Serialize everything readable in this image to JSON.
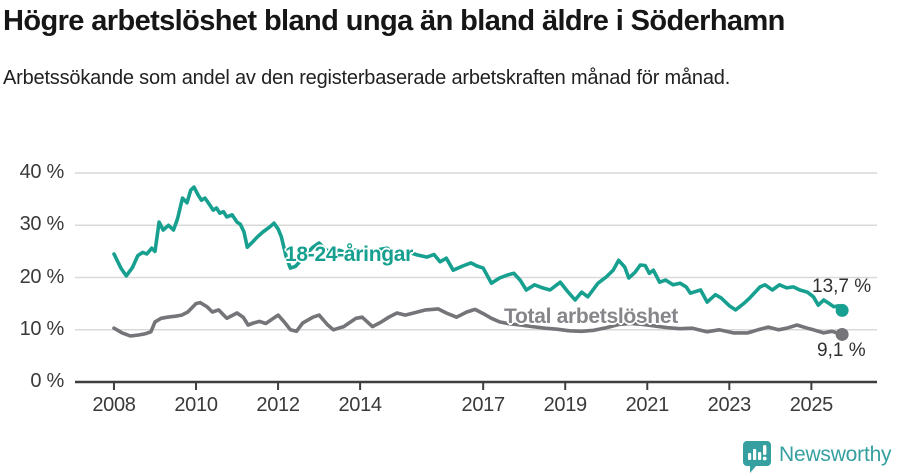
{
  "chart_data": {
    "type": "line",
    "title": "Högre arbetslöshet bland unga än bland äldre i Söderhamn",
    "subtitle": "Arbetssökande som andel av den registerbaserade arbetskraften månad för månad.",
    "unit": "%",
    "grid": "horizontal",
    "legend_position": "inline-labels",
    "xlim": [
      2007.05,
      2026.6
    ],
    "ylim": [
      0,
      40
    ],
    "x_ticks": [
      2008,
      2010,
      2012,
      2014,
      2017,
      2019,
      2021,
      2023,
      2025
    ],
    "x_tick_labels": [
      "2008",
      "2010",
      "2012",
      "2014",
      "2017",
      "2019",
      "2021",
      "2023",
      "2025"
    ],
    "y_ticks": [
      0,
      10,
      20,
      30,
      40
    ],
    "y_tick_labels": [
      "0 %",
      "10 %",
      "20 %",
      "30 %",
      "40 %"
    ],
    "grid_color": "#d9d9d9",
    "axis_color": "#3f3f3f",
    "tick_text_color": "#3a3a3a",
    "series": [
      {
        "name": "18-24-åringar",
        "color": "#17a08f",
        "label_color": "#17a08f",
        "end_value": 13.7,
        "end_label": "13,7 %",
        "points": [
          [
            2008.0,
            24.5
          ],
          [
            2008.17,
            21.8
          ],
          [
            2008.3,
            20.3
          ],
          [
            2008.45,
            21.9
          ],
          [
            2008.58,
            24.2
          ],
          [
            2008.7,
            24.8
          ],
          [
            2008.8,
            24.5
          ],
          [
            2008.92,
            25.6
          ],
          [
            2009.0,
            25.0
          ],
          [
            2009.1,
            30.6
          ],
          [
            2009.2,
            29.1
          ],
          [
            2009.33,
            30.0
          ],
          [
            2009.45,
            29.1
          ],
          [
            2009.55,
            31.3
          ],
          [
            2009.67,
            35.2
          ],
          [
            2009.78,
            34.3
          ],
          [
            2009.87,
            36.7
          ],
          [
            2009.95,
            37.3
          ],
          [
            2010.05,
            35.8
          ],
          [
            2010.13,
            34.8
          ],
          [
            2010.22,
            35.2
          ],
          [
            2010.3,
            34.3
          ],
          [
            2010.42,
            32.9
          ],
          [
            2010.5,
            33.3
          ],
          [
            2010.58,
            32.3
          ],
          [
            2010.67,
            32.6
          ],
          [
            2010.75,
            31.6
          ],
          [
            2010.88,
            32.0
          ],
          [
            2011.0,
            30.6
          ],
          [
            2011.08,
            30.2
          ],
          [
            2011.17,
            28.7
          ],
          [
            2011.25,
            25.8
          ],
          [
            2011.38,
            26.8
          ],
          [
            2011.5,
            27.8
          ],
          [
            2011.63,
            28.7
          ],
          [
            2011.8,
            29.7
          ],
          [
            2011.9,
            30.4
          ],
          [
            2012.0,
            29.3
          ],
          [
            2012.08,
            27.8
          ],
          [
            2012.2,
            23.9
          ],
          [
            2012.3,
            21.8
          ],
          [
            2012.42,
            22.1
          ],
          [
            2012.55,
            23.2
          ],
          [
            2012.7,
            24.6
          ],
          [
            2012.85,
            25.8
          ],
          [
            2013.0,
            26.6
          ],
          [
            2013.15,
            25.4
          ],
          [
            2013.3,
            24.8
          ],
          [
            2013.5,
            25.2
          ],
          [
            2013.7,
            24.6
          ],
          [
            2013.9,
            25.3
          ],
          [
            2014.1,
            24.8
          ],
          [
            2014.3,
            25.0
          ],
          [
            2014.5,
            25.4
          ],
          [
            2014.66,
            25.6
          ],
          [
            2014.85,
            24.6
          ],
          [
            2015.0,
            24.2
          ],
          [
            2015.2,
            24.8
          ],
          [
            2015.4,
            24.3
          ],
          [
            2015.63,
            23.9
          ],
          [
            2015.8,
            24.4
          ],
          [
            2015.95,
            23.0
          ],
          [
            2016.1,
            23.7
          ],
          [
            2016.27,
            21.4
          ],
          [
            2016.5,
            22.2
          ],
          [
            2016.7,
            22.8
          ],
          [
            2016.85,
            22.2
          ],
          [
            2017.0,
            21.8
          ],
          [
            2017.2,
            18.9
          ],
          [
            2017.4,
            19.9
          ],
          [
            2017.6,
            20.5
          ],
          [
            2017.75,
            20.8
          ],
          [
            2017.9,
            19.5
          ],
          [
            2018.05,
            17.6
          ],
          [
            2018.25,
            18.6
          ],
          [
            2018.45,
            18.0
          ],
          [
            2018.63,
            17.6
          ],
          [
            2018.88,
            19.1
          ],
          [
            2019.05,
            17.4
          ],
          [
            2019.24,
            15.7
          ],
          [
            2019.4,
            17.2
          ],
          [
            2019.55,
            16.3
          ],
          [
            2019.8,
            18.9
          ],
          [
            2020.0,
            20.1
          ],
          [
            2020.17,
            21.4
          ],
          [
            2020.3,
            23.3
          ],
          [
            2020.45,
            22.0
          ],
          [
            2020.55,
            19.9
          ],
          [
            2020.7,
            21.0
          ],
          [
            2020.83,
            22.4
          ],
          [
            2020.95,
            22.3
          ],
          [
            2021.05,
            20.8
          ],
          [
            2021.15,
            21.4
          ],
          [
            2021.3,
            19.1
          ],
          [
            2021.45,
            19.5
          ],
          [
            2021.63,
            18.6
          ],
          [
            2021.8,
            18.9
          ],
          [
            2021.95,
            18.2
          ],
          [
            2022.05,
            17.0
          ],
          [
            2022.3,
            17.6
          ],
          [
            2022.46,
            15.3
          ],
          [
            2022.66,
            16.7
          ],
          [
            2022.8,
            16.1
          ],
          [
            2023.0,
            14.6
          ],
          [
            2023.15,
            13.8
          ],
          [
            2023.35,
            15.0
          ],
          [
            2023.5,
            16.1
          ],
          [
            2023.75,
            18.2
          ],
          [
            2023.87,
            18.6
          ],
          [
            2024.05,
            17.6
          ],
          [
            2024.22,
            18.6
          ],
          [
            2024.4,
            18.0
          ],
          [
            2024.56,
            18.2
          ],
          [
            2024.72,
            17.6
          ],
          [
            2024.9,
            17.2
          ],
          [
            2025.05,
            16.3
          ],
          [
            2025.17,
            14.7
          ],
          [
            2025.3,
            15.7
          ],
          [
            2025.42,
            15.1
          ],
          [
            2025.55,
            14.4
          ],
          [
            2025.67,
            14.6
          ],
          [
            2025.75,
            13.7
          ]
        ]
      },
      {
        "name": "Total arbetslöshet",
        "color": "#757579",
        "label_color": "#85858a",
        "end_value": 9.1,
        "end_label": "9,1 %",
        "points": [
          [
            2008.0,
            10.3
          ],
          [
            2008.2,
            9.4
          ],
          [
            2008.4,
            8.8
          ],
          [
            2008.6,
            9.0
          ],
          [
            2008.75,
            9.2
          ],
          [
            2008.9,
            9.6
          ],
          [
            2009.0,
            11.5
          ],
          [
            2009.15,
            12.2
          ],
          [
            2009.3,
            12.4
          ],
          [
            2009.5,
            12.6
          ],
          [
            2009.65,
            12.8
          ],
          [
            2009.8,
            13.4
          ],
          [
            2010.0,
            15.0
          ],
          [
            2010.1,
            15.2
          ],
          [
            2010.27,
            14.4
          ],
          [
            2010.4,
            13.4
          ],
          [
            2010.55,
            13.8
          ],
          [
            2010.75,
            12.2
          ],
          [
            2010.9,
            12.8
          ],
          [
            2011.0,
            13.2
          ],
          [
            2011.15,
            12.4
          ],
          [
            2011.27,
            10.9
          ],
          [
            2011.4,
            11.3
          ],
          [
            2011.55,
            11.6
          ],
          [
            2011.7,
            11.2
          ],
          [
            2011.85,
            12.0
          ],
          [
            2012.0,
            12.8
          ],
          [
            2012.15,
            11.5
          ],
          [
            2012.3,
            10.0
          ],
          [
            2012.45,
            9.7
          ],
          [
            2012.6,
            11.3
          ],
          [
            2012.85,
            12.4
          ],
          [
            2013.0,
            12.8
          ],
          [
            2013.2,
            11.0
          ],
          [
            2013.35,
            10.0
          ],
          [
            2013.6,
            10.6
          ],
          [
            2013.9,
            12.2
          ],
          [
            2014.05,
            12.4
          ],
          [
            2014.3,
            10.6
          ],
          [
            2014.5,
            11.4
          ],
          [
            2014.7,
            12.4
          ],
          [
            2014.9,
            13.2
          ],
          [
            2015.1,
            12.8
          ],
          [
            2015.35,
            13.3
          ],
          [
            2015.6,
            13.8
          ],
          [
            2015.9,
            14.0
          ],
          [
            2016.1,
            13.2
          ],
          [
            2016.35,
            12.4
          ],
          [
            2016.6,
            13.4
          ],
          [
            2016.8,
            13.9
          ],
          [
            2017.0,
            13.1
          ],
          [
            2017.2,
            12.2
          ],
          [
            2017.4,
            11.5
          ],
          [
            2017.6,
            11.2
          ],
          [
            2017.9,
            10.9
          ],
          [
            2018.2,
            10.6
          ],
          [
            2018.5,
            10.3
          ],
          [
            2018.8,
            10.1
          ],
          [
            2019.1,
            9.8
          ],
          [
            2019.4,
            9.7
          ],
          [
            2019.7,
            9.9
          ],
          [
            2020.0,
            10.4
          ],
          [
            2020.3,
            11.0
          ],
          [
            2020.6,
            11.2
          ],
          [
            2020.9,
            11.0
          ],
          [
            2021.2,
            10.7
          ],
          [
            2021.5,
            10.4
          ],
          [
            2021.8,
            10.2
          ],
          [
            2022.1,
            10.3
          ],
          [
            2022.45,
            9.6
          ],
          [
            2022.75,
            10.0
          ],
          [
            2023.1,
            9.4
          ],
          [
            2023.45,
            9.4
          ],
          [
            2023.7,
            10.0
          ],
          [
            2023.95,
            10.5
          ],
          [
            2024.2,
            10.0
          ],
          [
            2024.4,
            10.3
          ],
          [
            2024.65,
            10.9
          ],
          [
            2024.9,
            10.3
          ],
          [
            2025.05,
            10.0
          ],
          [
            2025.3,
            9.4
          ],
          [
            2025.5,
            9.7
          ],
          [
            2025.75,
            9.1
          ]
        ]
      }
    ]
  },
  "footer": {
    "brand": "Newsworthy",
    "brand_color": "#36a0a0",
    "logo_icon": "bar-chart-speech-bubble-icon"
  }
}
